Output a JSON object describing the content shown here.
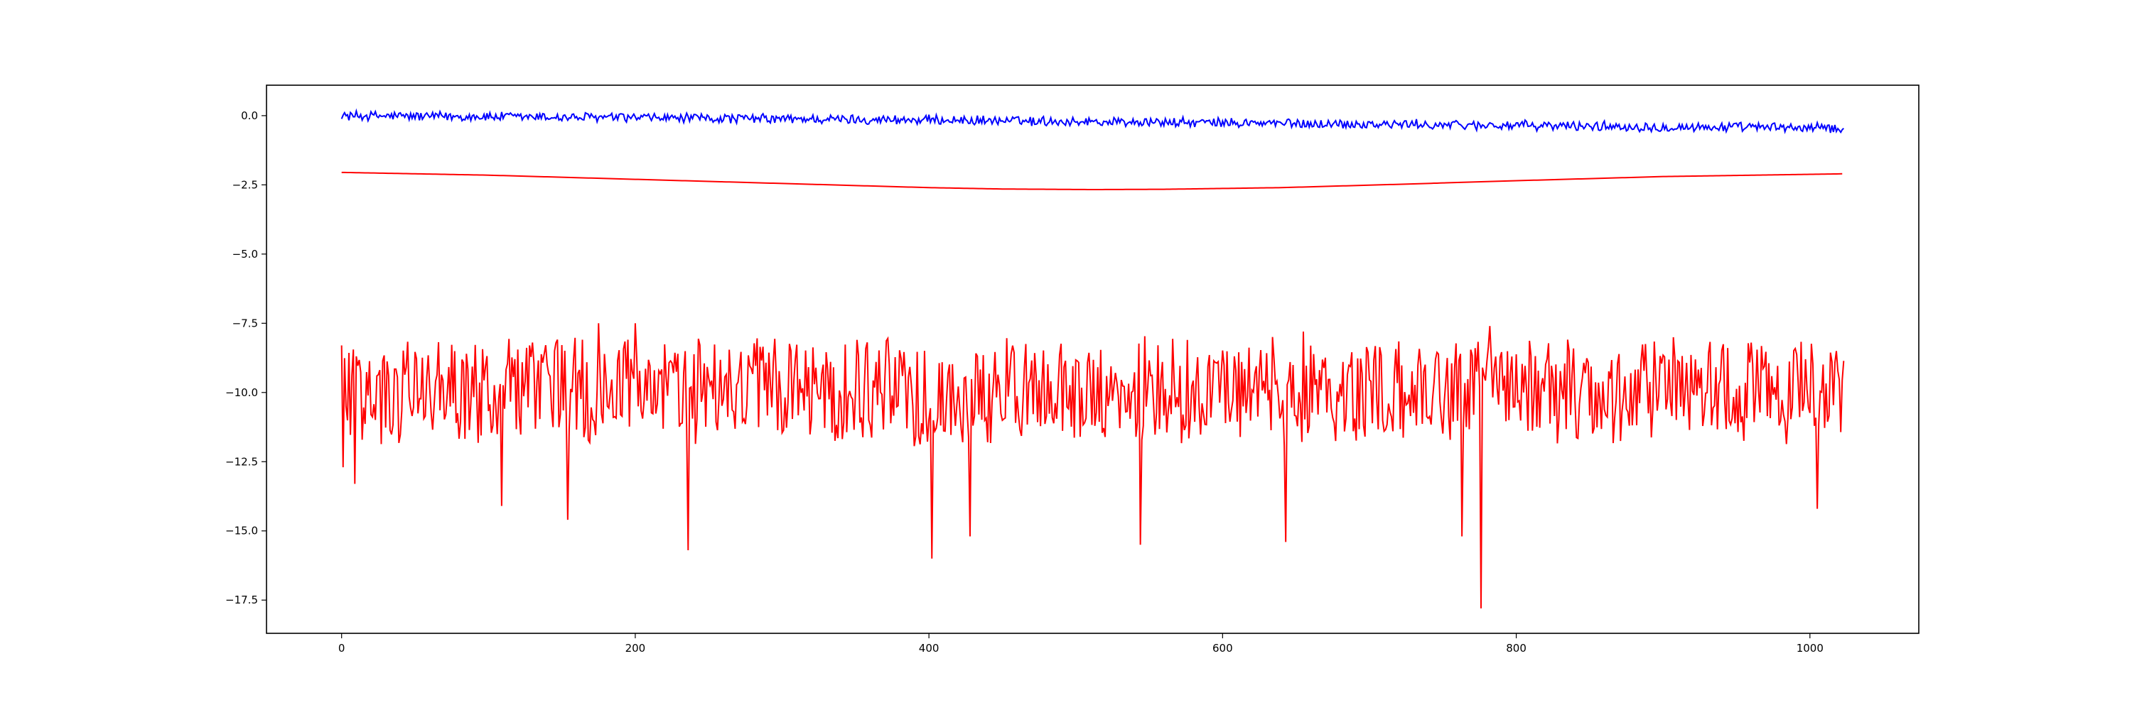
{
  "chart_data": {
    "type": "line",
    "title": "",
    "xlabel": "",
    "ylabel": "",
    "xlim": [
      -51.15,
      1074.15
    ],
    "ylim": [
      -18.7,
      1.1
    ],
    "grid": false,
    "legend": "none",
    "x_ticks": [
      0,
      200,
      400,
      600,
      800,
      1000
    ],
    "x_tick_labels": [
      "0",
      "200",
      "400",
      "600",
      "800",
      "1000"
    ],
    "y_ticks": [
      0,
      -2.5,
      -5,
      -7.5,
      -10,
      -12.5,
      -15,
      -17.5
    ],
    "y_tick_labels": [
      "0.0",
      "−2.5",
      "−5.0",
      "−7.5",
      "−10.0",
      "−12.5",
      "−15.0",
      "−17.5"
    ],
    "series": [
      {
        "color": "#0000ff",
        "x_start": 0,
        "x_end": 1023,
        "noise_amplitude": 0.2,
        "trend": [
          [
            0,
            0.0
          ],
          [
            128,
            -0.05
          ],
          [
            256,
            -0.1
          ],
          [
            384,
            -0.15
          ],
          [
            512,
            -0.22
          ],
          [
            640,
            -0.28
          ],
          [
            768,
            -0.34
          ],
          [
            896,
            -0.4
          ],
          [
            1023,
            -0.45
          ]
        ]
      },
      {
        "color": "#ff0000",
        "x_start": 0,
        "x_end": 1023,
        "values": [
          [
            0,
            -2.05
          ],
          [
            100,
            -2.15
          ],
          [
            200,
            -2.3
          ],
          [
            300,
            -2.45
          ],
          [
            400,
            -2.6
          ],
          [
            450,
            -2.65
          ],
          [
            512,
            -2.67
          ],
          [
            560,
            -2.66
          ],
          [
            640,
            -2.6
          ],
          [
            720,
            -2.48
          ],
          [
            800,
            -2.35
          ],
          [
            900,
            -2.2
          ],
          [
            1000,
            -2.12
          ],
          [
            1023,
            -2.1
          ]
        ]
      },
      {
        "color": "#ff0000",
        "x_start": 0,
        "x_end": 1023,
        "baseline": -9.8,
        "noise_range": [
          -12.0,
          -8.0
        ],
        "peaks": [
          [
            0,
            -8.3
          ],
          [
            175,
            -7.5
          ],
          [
            200,
            -7.5
          ],
          [
            655,
            -7.8
          ],
          [
            782,
            -7.6
          ]
        ],
        "dips": [
          [
            1,
            -12.7
          ],
          [
            9,
            -13.3
          ],
          [
            109,
            -14.1
          ],
          [
            154,
            -14.6
          ],
          [
            236,
            -15.7
          ],
          [
            402,
            -16.0
          ],
          [
            428,
            -15.2
          ],
          [
            544,
            -15.5
          ],
          [
            643,
            -15.4
          ],
          [
            763,
            -15.2
          ],
          [
            776,
            -17.8
          ],
          [
            1005,
            -14.2
          ]
        ]
      }
    ]
  }
}
